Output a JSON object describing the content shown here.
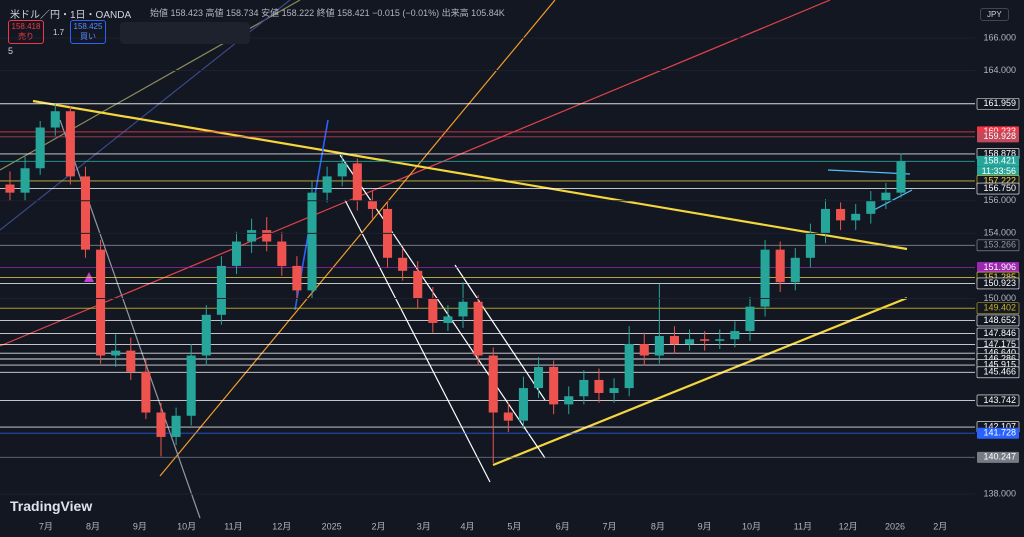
{
  "header": {
    "symbol": "米ドル／円・1日・OANDA",
    "ohlc": "始値 158.423 高値 158.734 安値 158.222 終値 158.421 −0.015 (−0.01%) 出来高 105.84K",
    "sell_price": "158.418",
    "sell": "売り",
    "spread": "1.7",
    "buy_price": "158.425",
    "buy": "買い",
    "indicators": "5",
    "currency": "JPY",
    "current_time": "11:33:56",
    "logo": "TradingView"
  },
  "chart_data": {
    "type": "candlestick",
    "title": "米ドル／円・1日・OANDA",
    "open": [
      157,
      156.5,
      158,
      160.5,
      161.5,
      157.5,
      153,
      146.5,
      146.8,
      145.5,
      143,
      141.5,
      142.8,
      146.5,
      149,
      152,
      153.5,
      154.2,
      153.5,
      152,
      150.5,
      156.5,
      157.5,
      158.3,
      156,
      155.5,
      152.5,
      151.7,
      150,
      148.5,
      148.9,
      149.8,
      146.5,
      143,
      142.5,
      144.5,
      145.8,
      143.5,
      144,
      145,
      144.2,
      144.5,
      147.2,
      146.5,
      147.7,
      147.2,
      147.5,
      147.4,
      147.5,
      148,
      149.5,
      153,
      151,
      152.5,
      154,
      155.5,
      154.8,
      155.2,
      156,
      156.5
    ],
    "high": [
      157.8,
      158.7,
      160.9,
      161.95,
      161.8,
      158.1,
      153.6,
      147.8,
      147.6,
      146.3,
      143.6,
      143.3,
      147.2,
      149.6,
      152.6,
      154.1,
      154.9,
      155,
      154.1,
      152.6,
      157.2,
      158.1,
      158.87,
      158.6,
      156.6,
      156,
      153.1,
      152.3,
      150.7,
      149.6,
      151,
      150.2,
      147,
      143.6,
      145.2,
      146.4,
      146.2,
      144.6,
      145.6,
      145.7,
      145.1,
      148.3,
      147.9,
      150.9,
      148.3,
      148.1,
      148,
      148.1,
      148.6,
      150.1,
      153.6,
      153.5,
      153.1,
      154.6,
      156.1,
      155.9,
      155.8,
      156.6,
      157.1,
      158.9
    ],
    "low": [
      156,
      156,
      157.6,
      160,
      157,
      152.5,
      146,
      145.8,
      145,
      142.6,
      140.3,
      141,
      142.2,
      145.9,
      148.4,
      151.5,
      152.8,
      152.9,
      151.4,
      149.9,
      150,
      155.9,
      156.9,
      155.4,
      154.9,
      151.9,
      151.1,
      149.4,
      147.9,
      148,
      148.2,
      145.9,
      139.9,
      141.8,
      142,
      143.9,
      142.9,
      142.9,
      143.5,
      143.6,
      143.6,
      144,
      145.9,
      146,
      146.6,
      146.8,
      146.8,
      146.9,
      147,
      147.4,
      148.9,
      150.4,
      150.5,
      151.9,
      153.4,
      154.2,
      154.2,
      154.6,
      155.5,
      156.2
    ],
    "close": [
      156.5,
      158,
      160.5,
      161.5,
      157.5,
      153,
      146.5,
      146.8,
      145.5,
      143,
      141.5,
      142.8,
      146.5,
      149,
      152,
      153.5,
      154.2,
      153.5,
      152,
      150.5,
      156.5,
      157.5,
      158.3,
      156,
      155.5,
      152.5,
      151.7,
      150,
      148.5,
      148.9,
      149.8,
      146.5,
      143,
      142.5,
      144.5,
      145.8,
      143.5,
      144,
      145,
      144.2,
      144.5,
      147.2,
      146.5,
      147.7,
      147.2,
      147.5,
      147.4,
      147.5,
      148,
      149.5,
      153,
      151,
      152.5,
      154,
      155.5,
      154.8,
      155.2,
      156,
      156.5,
      158.42
    ],
    "up_color": "#26a69a",
    "down_color": "#ef5350",
    "xlim": [
      -0.66,
      63.9
    ],
    "xticks": [
      {
        "value": 2.38,
        "label": "7月"
      },
      {
        "value": 5.5,
        "label": "8月"
      },
      {
        "value": 8.6,
        "label": "9月"
      },
      {
        "value": 11.7,
        "label": "10月"
      },
      {
        "value": 14.8,
        "label": "11月"
      },
      {
        "value": 18,
        "label": "12月"
      },
      {
        "value": 21.3,
        "label": "2025"
      },
      {
        "value": 24.4,
        "label": "2月"
      },
      {
        "value": 27.4,
        "label": "3月"
      },
      {
        "value": 30.3,
        "label": "4月"
      },
      {
        "value": 33.4,
        "label": "5月"
      },
      {
        "value": 36.6,
        "label": "6月"
      },
      {
        "value": 39.7,
        "label": "7月"
      },
      {
        "value": 42.9,
        "label": "8月"
      },
      {
        "value": 46,
        "label": "9月"
      },
      {
        "value": 49.1,
        "label": "10月"
      },
      {
        "value": 52.5,
        "label": "11月"
      },
      {
        "value": 55.5,
        "label": "12月"
      },
      {
        "value": 58.6,
        "label": "2026"
      },
      {
        "value": 61.6,
        "label": "2月"
      }
    ],
    "ylim": [
      136.4,
      168.33
    ],
    "yticks": [
      {
        "value": 166,
        "label": "166.000"
      },
      {
        "value": 164,
        "label": "164.000"
      },
      {
        "value": 156,
        "label": "156.000"
      },
      {
        "value": 154,
        "label": "154.000"
      },
      {
        "value": 150,
        "label": "150.000"
      },
      {
        "value": 138,
        "label": "138.000"
      }
    ],
    "levels": [
      {
        "price": 161.959,
        "color": "#ffffff"
      },
      {
        "price": 160.233,
        "color": "#f23645"
      },
      {
        "price": 159.928,
        "color": "#c2485a"
      },
      {
        "price": 158.878,
        "color": "#ffffff"
      },
      {
        "price": 158.421,
        "color": "#26a69a"
      },
      {
        "price": 157.222,
        "color": "#f5d63d"
      },
      {
        "price": 156.75,
        "label": "156.750",
        "color": "#ffffff"
      },
      {
        "price": 153.266,
        "color": "#9598a1"
      },
      {
        "price": 151.906,
        "color": "#9c27b0"
      },
      {
        "price": 151.285,
        "color": "#f5d63d"
      },
      {
        "price": 150.923,
        "color": "#ffffff"
      },
      {
        "price": 149.402,
        "color": "#c8b52a"
      },
      {
        "price": 148.652,
        "color": "#ffffff"
      },
      {
        "price": 147.846,
        "color": "#ffffff"
      },
      {
        "price": 147.175,
        "color": "#ffffff"
      },
      {
        "price": 146.64,
        "label": "146.640",
        "color": "#ffffff"
      },
      {
        "price": 146.286,
        "color": "#ffffff"
      },
      {
        "price": 145.915,
        "color": "#ffffff"
      },
      {
        "price": 145.466,
        "color": "#ffffff"
      },
      {
        "price": 143.742,
        "color": "#ffffff"
      },
      {
        "price": 142.107,
        "color": "#ffffff"
      },
      {
        "price": 141.728,
        "color": "#2962ff"
      },
      {
        "price": 140.247,
        "color": "#787b86"
      }
    ]
  }
}
